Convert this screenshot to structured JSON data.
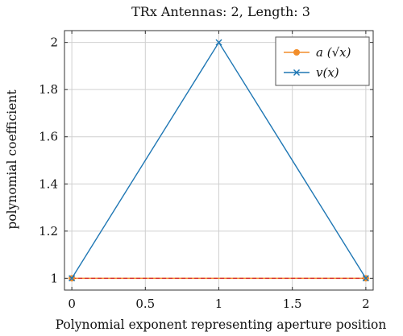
{
  "chart_data": {
    "type": "line",
    "title": "TRx Antennas: 2, Length: 3",
    "xlabel": "Polynomial exponent representing aperture position",
    "ylabel": "polynomial coefficient",
    "xlim": [
      -0.05,
      2.05
    ],
    "ylim": [
      0.95,
      2.05
    ],
    "xticks": [
      0,
      0.5,
      1,
      1.5,
      2
    ],
    "xtick_labels": [
      "0",
      "0.5",
      "1",
      "1.5",
      "2"
    ],
    "yticks": [
      1,
      1.2,
      1.4,
      1.6,
      1.8,
      2
    ],
    "ytick_labels": [
      "1",
      "1.2",
      "1.4",
      "1.6",
      "1.8",
      "2"
    ],
    "grid": true,
    "legend_position": "top-right",
    "series": [
      {
        "name": "a (√x)",
        "x": [
          0,
          2
        ],
        "y": [
          1,
          1
        ],
        "color": "#f28e2b",
        "marker": "circle",
        "dashed_overlay_color": "#d62728"
      },
      {
        "name": "v(x)",
        "x": [
          0,
          1,
          2
        ],
        "y": [
          1,
          2,
          1
        ],
        "color": "#1f77b4",
        "marker": "x"
      }
    ]
  }
}
